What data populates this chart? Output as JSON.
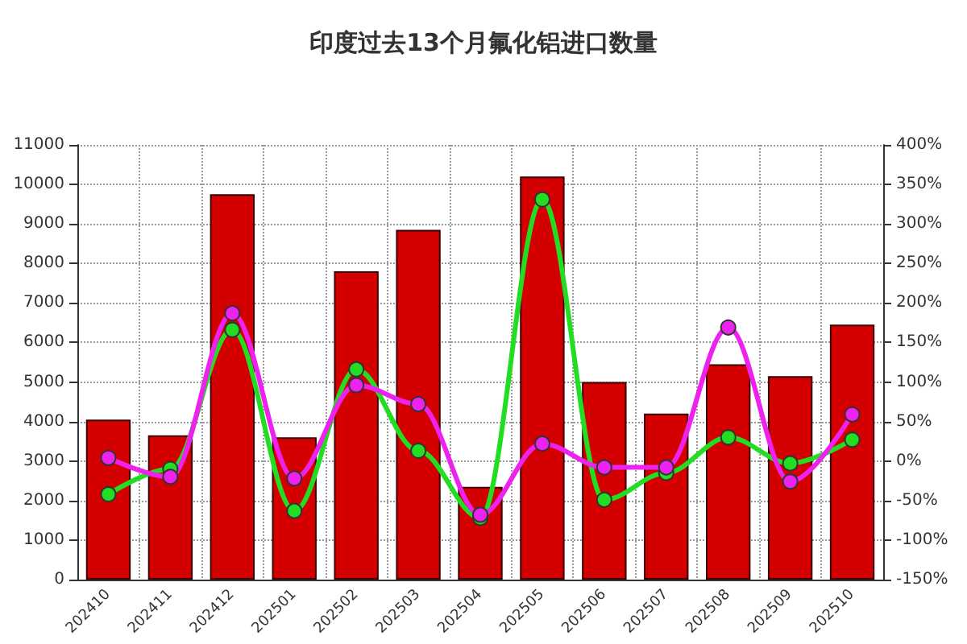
{
  "chart_data": {
    "type": "bar",
    "title": "印度过去13个月氟化铝进口数量",
    "categories": [
      "202410",
      "202411",
      "202412",
      "202501",
      "202502",
      "202503",
      "202504",
      "202505",
      "202506",
      "202507",
      "202508",
      "202509",
      "202510"
    ],
    "series": [
      {
        "color": "#d40000",
        "values": [
          4050,
          3650,
          9750,
          3600,
          7800,
          8850,
          2350,
          10200,
          5000,
          4200,
          5450,
          5150,
          6450
        ]
      },
      {
        "type": "line",
        "axis": "y2",
        "color": "#22dd22",
        "marker": "circle",
        "values": [
          -42,
          -10,
          166,
          -63,
          116,
          13,
          -72,
          331,
          -49,
          -15,
          30,
          -3,
          27
        ]
      },
      {
        "type": "line",
        "axis": "y2",
        "color": "#ee22ee",
        "marker": "circle",
        "values": [
          4,
          -20,
          187,
          -22,
          96,
          72,
          -68,
          22,
          -8,
          -8,
          169,
          -26,
          59
        ]
      }
    ],
    "ylim": [
      0,
      11000
    ],
    "yticks": [
      0,
      1000,
      2000,
      3000,
      4000,
      5000,
      6000,
      7000,
      8000,
      9000,
      10000,
      11000
    ],
    "y2lim": [
      -150,
      400
    ],
    "y2ticks": [
      {
        "value": -150,
        "label": "-150%"
      },
      {
        "value": -100,
        "label": "-100%"
      },
      {
        "value": -50,
        "label": "-50%"
      },
      {
        "value": 0,
        "label": "0%"
      },
      {
        "value": 50,
        "label": "50%"
      },
      {
        "value": 100,
        "label": "100%"
      },
      {
        "value": 150,
        "label": "150%"
      },
      {
        "value": 200,
        "label": "200%"
      },
      {
        "value": 250,
        "label": "250%"
      },
      {
        "value": 300,
        "label": "300%"
      },
      {
        "value": 350,
        "label": "350%"
      },
      {
        "value": 400,
        "label": "400%"
      }
    ],
    "grid": true
  }
}
